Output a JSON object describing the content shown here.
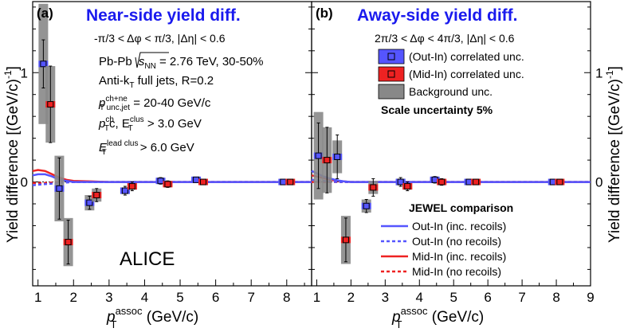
{
  "figure": {
    "x_axis_title": "p",
    "x_axis_title_sup": "assoc",
    "x_axis_title_sub": "T",
    "x_axis_unit": " (GeV/c)",
    "y_axis_title": "Yield difference [(GeV/c)",
    "y_axis_title_sup": "-1",
    "y_axis_title_end": "]",
    "alice_label": "ALICE"
  },
  "info_box": {
    "line1a": "Pb-Pb",
    "line1b": "s",
    "line1c": "NN",
    "line1d": " = 2.76 TeV, 30-50%",
    "line2": "Anti-k",
    "line2b": "T",
    "line2c": " full jets, R=0.2",
    "line3a": "p",
    "line3b": "ch+ne",
    "line3c": "T unc,jet",
    "line3d": " = 20-40 GeV/c",
    "line4a": "p",
    "line4b": "ch",
    "line4c": "T",
    "line4d": "c, E",
    "line4e": "clus",
    "line4f": "T",
    "line4g": " > 3.0 GeV",
    "line5a": "E",
    "line5b": "lead clus",
    "line5c": "T",
    "line5d": " > 6.0 GeV"
  },
  "legend_unc": {
    "out_in": "(Out-In) correlated unc.",
    "mid_in": "(Mid-In) correlated unc.",
    "bkg": "Background unc.",
    "scale": "Scale uncertainty 5%"
  },
  "legend_jewel": {
    "title": "JEWEL comparison",
    "out_inc": "Out-In (inc. recoils)",
    "out_no": "Out-In (no recoils)",
    "mid_inc": "Mid-In (inc. recoils)",
    "mid_no": "Mid-In (no recoils)"
  },
  "colors": {
    "out_in": "#5555ff",
    "mid_in": "#ee2222",
    "background": "#888888",
    "title": "#1a1aee"
  },
  "chart_data": [
    {
      "type": "scatter",
      "tag": "(a)",
      "title": "Near-side yield diff.",
      "subtitle": "-π/3 < Δφ < π/3, |Δη| < 0.6",
      "xlim": [
        0.85,
        8.7
      ],
      "ylim": [
        -0.95,
        1.65
      ],
      "xticks": [
        1,
        2,
        3,
        4,
        5,
        6,
        7,
        8
      ],
      "yticks": [
        0,
        1
      ],
      "series": [
        {
          "name": "Out-In",
          "points": [
            {
              "x": 1.15,
              "y": 1.08,
              "stat": 0.22,
              "bkg": 0.55
            },
            {
              "x": 1.6,
              "y": -0.06,
              "stat": 0.28,
              "bkg": 0.3
            },
            {
              "x": 2.45,
              "y": -0.19,
              "stat": 0.06,
              "bkg": 0.07
            },
            {
              "x": 3.45,
              "y": -0.08,
              "stat": 0.04,
              "bkg": 0.03
            },
            {
              "x": 4.45,
              "y": 0.01,
              "stat": 0.03,
              "bkg": 0.02
            },
            {
              "x": 5.45,
              "y": 0.02,
              "stat": 0.02,
              "bkg": 0.01
            },
            {
              "x": 7.9,
              "y": 0.0,
              "stat": 0.01,
              "bkg": 0.01
            }
          ]
        },
        {
          "name": "Mid-In",
          "points": [
            {
              "x": 1.35,
              "y": 0.71,
              "stat": 0.35,
              "bkg": 0.35
            },
            {
              "x": 1.85,
              "y": -0.55,
              "stat": 0.2,
              "bkg": 0.22
            },
            {
              "x": 2.65,
              "y": -0.12,
              "stat": 0.06,
              "bkg": 0.06
            },
            {
              "x": 3.65,
              "y": -0.04,
              "stat": 0.04,
              "bkg": 0.03
            },
            {
              "x": 4.65,
              "y": -0.02,
              "stat": 0.03,
              "bkg": 0.02
            },
            {
              "x": 5.65,
              "y": 0.0,
              "stat": 0.02,
              "bkg": 0.01
            },
            {
              "x": 8.1,
              "y": 0.0,
              "stat": 0.01,
              "bkg": 0.01
            }
          ]
        }
      ],
      "jewel": {
        "x": [
          0.85,
          1.0,
          1.2,
          1.4,
          1.6,
          1.8,
          2.0,
          2.5,
          3.0,
          4.0,
          5.0,
          6.0,
          7.0,
          8.7
        ],
        "out_inc": [
          0.06,
          0.07,
          0.07,
          0.05,
          0.02,
          0.01,
          0.0,
          0.0,
          0.0,
          0.0,
          0.0,
          0.0,
          0.0,
          0.0
        ],
        "out_no": [
          -0.03,
          -0.025,
          -0.02,
          -0.015,
          -0.01,
          -0.005,
          0.0,
          0.0,
          0.0,
          0.0,
          0.0,
          0.0,
          0.0,
          0.0
        ],
        "mid_inc": [
          0.1,
          0.11,
          0.1,
          0.07,
          0.04,
          0.02,
          0.01,
          0.005,
          0.0,
          0.0,
          0.0,
          0.0,
          0.0,
          0.0
        ],
        "mid_no": [
          -0.01,
          -0.01,
          -0.01,
          -0.005,
          0.0,
          0.0,
          0.0,
          0.0,
          0.0,
          0.0,
          0.0,
          0.0,
          0.0,
          0.0
        ]
      }
    },
    {
      "type": "scatter",
      "tag": "(b)",
      "title": "Away-side yield diff.",
      "subtitle": "2π/3 < Δφ < 4π/3, |Δη| < 0.6",
      "xlim": [
        0.85,
        9.0
      ],
      "ylim": [
        -0.95,
        1.65
      ],
      "xticks": [
        1,
        2,
        3,
        4,
        5,
        6,
        7,
        8,
        9
      ],
      "yticks": [
        0,
        1
      ],
      "series": [
        {
          "name": "Out-In",
          "points": [
            {
              "x": 1.05,
              "y": 0.24,
              "stat": 0.3,
              "bkg": 0.4
            },
            {
              "x": 1.6,
              "y": 0.23,
              "stat": 0.2,
              "bkg": 0.15
            },
            {
              "x": 2.45,
              "y": -0.22,
              "stat": 0.06,
              "bkg": 0.06
            },
            {
              "x": 3.45,
              "y": 0.0,
              "stat": 0.04,
              "bkg": 0.03
            },
            {
              "x": 4.45,
              "y": 0.02,
              "stat": 0.03,
              "bkg": 0.02
            },
            {
              "x": 5.45,
              "y": 0.0,
              "stat": 0.02,
              "bkg": 0.01
            },
            {
              "x": 7.9,
              "y": 0.0,
              "stat": 0.01,
              "bkg": 0.01
            }
          ]
        },
        {
          "name": "Mid-In",
          "points": [
            {
              "x": 1.3,
              "y": 0.2,
              "stat": 0.3,
              "bkg": 0.3
            },
            {
              "x": 1.85,
              "y": -0.53,
              "stat": 0.2,
              "bkg": 0.22
            },
            {
              "x": 2.65,
              "y": -0.05,
              "stat": 0.08,
              "bkg": 0.06
            },
            {
              "x": 3.65,
              "y": -0.04,
              "stat": 0.04,
              "bkg": 0.03
            },
            {
              "x": 4.65,
              "y": 0.0,
              "stat": 0.03,
              "bkg": 0.02
            },
            {
              "x": 5.65,
              "y": 0.0,
              "stat": 0.02,
              "bkg": 0.01
            },
            {
              "x": 8.1,
              "y": 0.0,
              "stat": 0.01,
              "bkg": 0.01
            }
          ]
        }
      ],
      "jewel": {
        "x": [
          0.85,
          1.0,
          1.2,
          1.4,
          1.6,
          1.8,
          2.0,
          2.5,
          3.0,
          4.0,
          5.0,
          6.0,
          7.0,
          9.0
        ],
        "out_inc": [
          0.1,
          0.08,
          0.05,
          0.03,
          0.015,
          0.005,
          0.0,
          0.0,
          0.0,
          0.0,
          0.0,
          0.0,
          0.0,
          0.0
        ],
        "out_no": [
          0.02,
          0.015,
          0.01,
          0.005,
          0.0,
          0.0,
          0.0,
          0.0,
          0.0,
          0.0,
          0.0,
          0.0,
          0.0,
          0.0
        ],
        "mid_inc": [
          0.06,
          0.05,
          0.035,
          0.02,
          0.01,
          0.005,
          0.0,
          0.0,
          0.0,
          0.0,
          0.0,
          0.0,
          0.0,
          0.0
        ],
        "mid_no": [
          0.0,
          0.0,
          0.0,
          0.0,
          0.0,
          0.0,
          0.0,
          0.0,
          0.0,
          0.0,
          0.0,
          0.0,
          0.0,
          0.0
        ]
      }
    }
  ]
}
